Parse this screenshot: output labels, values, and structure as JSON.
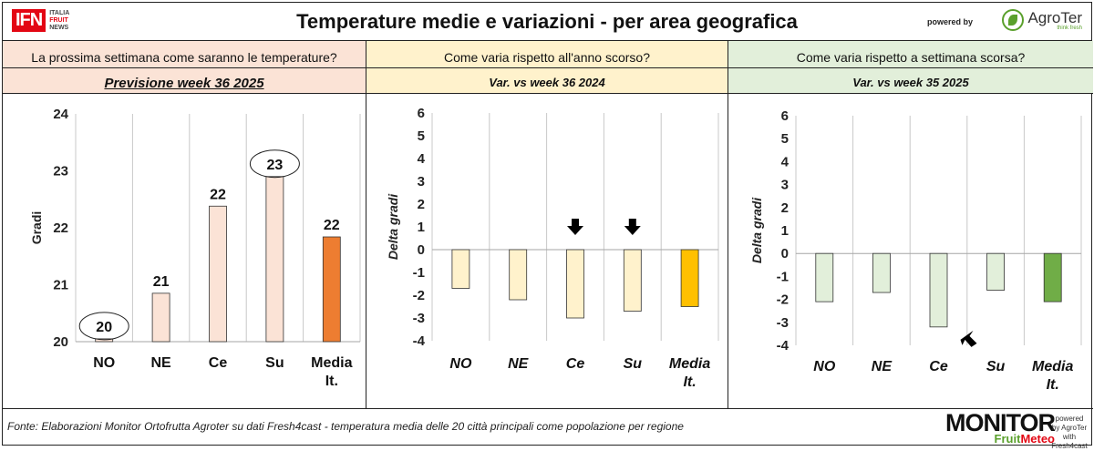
{
  "header": {
    "title": "Temperature medie e variazioni - per area geografica",
    "ifn_logo": "IFN",
    "ifn_lines": [
      "ITALIA",
      "FRUIT",
      "NEWS"
    ],
    "powered_by": "powered by",
    "agroter_name": "AgroTer",
    "agroter_tagline": "think fresh"
  },
  "panels": [
    {
      "question": "La prossima settimana come saranno le temperature?",
      "subtitle": "Previsione week 36 2025",
      "color": "#fbe3d6"
    },
    {
      "question": "Come varia rispetto all'anno scorso?",
      "subtitle": "Var. vs week 36 2024",
      "color": "#fff2cc"
    },
    {
      "question": "Come varia rispetto a settimana scorsa?",
      "subtitle": "Var. vs week 35 2025",
      "color": "#e2efda"
    }
  ],
  "chart_data": [
    {
      "type": "bar",
      "categories": [
        "NO",
        "NE",
        "Ce",
        "Su",
        "Media It."
      ],
      "values": [
        20.05,
        20.85,
        22.38,
        22.9,
        21.84
      ],
      "data_labels": [
        "20",
        "21",
        "22",
        "23",
        "22"
      ],
      "circled_labels": [
        "NO",
        "Su"
      ],
      "ylabel": "Gradi",
      "ylim": [
        20,
        24
      ],
      "yticks": [
        "20",
        "21",
        "22",
        "23",
        "24"
      ],
      "bar_color": "#fbe3d6",
      "highlight_color": "#ed7d31",
      "grid": "vertical category separators"
    },
    {
      "type": "bar",
      "categories": [
        "NO",
        "NE",
        "Ce",
        "Su",
        "Media It."
      ],
      "values": [
        -1.7,
        -2.2,
        -3.0,
        -2.7,
        -2.5
      ],
      "ylabel": "Delta gradi",
      "ylim": [
        -4,
        6
      ],
      "yticks": [
        "-4",
        "-3",
        "-2",
        "-1",
        "0",
        "1",
        "2",
        "3",
        "4",
        "5",
        "6"
      ],
      "bar_color": "#fff2cc",
      "highlight_color": "#ffc000",
      "arrows_on": [
        "Ce",
        "Su"
      ],
      "grid": "vertical category separators"
    },
    {
      "type": "bar",
      "categories": [
        "NO",
        "NE",
        "Ce",
        "Su",
        "Media It."
      ],
      "values": [
        -2.1,
        -1.7,
        -3.2,
        -1.6,
        -2.1
      ],
      "ylabel": "Delta gradi",
      "ylim": [
        -4,
        6
      ],
      "yticks": [
        "-4",
        "-3",
        "-2",
        "-1",
        "0",
        "1",
        "2",
        "3",
        "4",
        "5",
        "6"
      ],
      "bar_color": "#e2efda",
      "highlight_color": "#70ad47",
      "arrows_on": [
        "Ce"
      ],
      "grid": "vertical category separators"
    }
  ],
  "footer": {
    "source": "Fonte: Elaborazioni Monitor Ortofrutta Agroter su dati Fresh4cast - temperatura media delle 20 città principali come popolazione per regione",
    "monitor_word": "MONITOR",
    "monitor_fruit": "Fruit",
    "monitor_meteo": "Meteo",
    "mini_logo": "powered by AgroTer with Fresh4cast"
  }
}
